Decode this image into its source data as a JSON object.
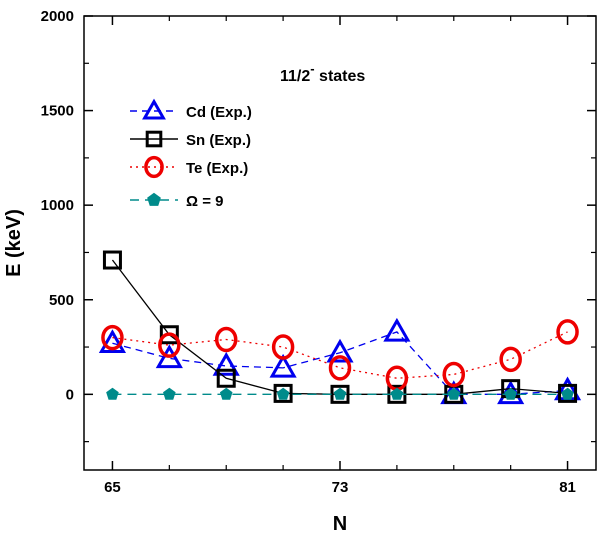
{
  "chart_data": {
    "type": "line",
    "title": "",
    "annotation": {
      "main": "11/2",
      "sup": "-",
      "rest": " states"
    },
    "xlabel": "N",
    "ylabel": "E (keV)",
    "xlim": [
      64,
      82
    ],
    "ylim": [
      -400,
      2000
    ],
    "xticks": [
      65,
      73,
      81
    ],
    "xticks_minor": [
      67,
      69,
      71,
      75,
      77,
      79
    ],
    "yticks": [
      0,
      500,
      1000,
      1500,
      2000
    ],
    "yticks_minor": [
      -250,
      250,
      750,
      1250,
      1750
    ],
    "grid": false,
    "legend_position": "upper-left",
    "series": [
      {
        "name": "Cd (Exp.)",
        "label_main": "Cd (Exp.)",
        "marker": "triangle-open",
        "line": "dashed",
        "color": "#0000ee",
        "x": [
          65,
          67,
          69,
          71,
          73,
          75,
          77,
          79,
          81
        ],
        "y": [
          270,
          190,
          150,
          140,
          220,
          330,
          0,
          0,
          20
        ]
      },
      {
        "name": "Sn (Exp.)",
        "label_main": "Sn (Exp.)",
        "marker": "square-open",
        "line": "solid",
        "color": "#000000",
        "x": [
          65,
          67,
          69,
          71,
          73,
          75,
          77,
          79,
          81
        ],
        "y": [
          710,
          315,
          85,
          5,
          0,
          0,
          0,
          30,
          5
        ]
      },
      {
        "name": "Te (Exp.)",
        "label_main": "Te (Exp.)",
        "marker": "circle-open",
        "line": "dotted",
        "color": "#ee0000",
        "x": [
          65,
          67,
          69,
          71,
          73,
          75,
          77,
          79,
          81
        ],
        "y": [
          300,
          260,
          290,
          250,
          140,
          85,
          105,
          185,
          330
        ]
      },
      {
        "name": "Ω = 9",
        "label_main": "Ω = 9",
        "marker": "pentagon-filled",
        "line": "dashed-long",
        "color": "#008b8b",
        "x": [
          65,
          67,
          69,
          71,
          73,
          75,
          77,
          79,
          81
        ],
        "y": [
          0,
          0,
          0,
          0,
          0,
          0,
          0,
          0,
          0
        ]
      }
    ]
  }
}
